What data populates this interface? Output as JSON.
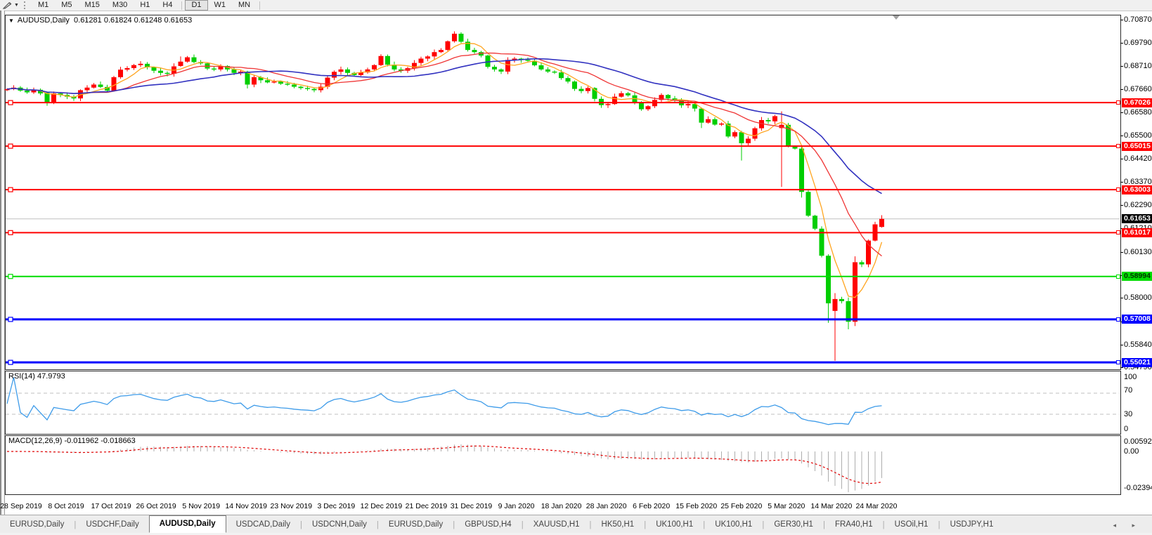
{
  "toolbar": {
    "timeframes": [
      "M1",
      "M5",
      "M15",
      "M30",
      "H1",
      "H4",
      "D1",
      "W1",
      "MN"
    ],
    "active_timeframe": "D1"
  },
  "chart_header": {
    "symbol": "AUDUSD,Daily",
    "ohlc_line": "0.61281 0.61824 0.61248 0.61653"
  },
  "panels": {
    "rsi": {
      "label": "RSI(14) 47.9793",
      "axis_labels": [
        "100",
        "70",
        "30",
        "0"
      ]
    },
    "macd": {
      "label": "MACD(12,26,9) -0.011962 -0.018663",
      "axis_labels": [
        "0.005923",
        "0.00",
        "-0.023944"
      ]
    }
  },
  "price_axis": {
    "ticks": [
      "0.70870",
      "0.69790",
      "0.68710",
      "0.67660",
      "0.66580",
      "0.65500",
      "0.64420",
      "0.63370",
      "0.62290",
      "0.61210",
      "0.60130",
      "0.59050",
      "0.58000",
      "0.56920",
      "0.55840",
      "0.54790"
    ],
    "current_price_badge": {
      "text": "0.61653",
      "bg": "#000000",
      "fg": "#FFFFFF"
    }
  },
  "time_axis": {
    "dates": [
      "28 Sep 2019",
      "8 Oct 2019",
      "17 Oct 2019",
      "26 Oct 2019",
      "5 Nov 2019",
      "14 Nov 2019",
      "23 Nov 2019",
      "3 Dec 2019",
      "12 Dec 2019",
      "21 Dec 2019",
      "31 Dec 2019",
      "9 Jan 2020",
      "18 Jan 2020",
      "28 Jan 2020",
      "6 Feb 2020",
      "15 Feb 2020",
      "25 Feb 2020",
      "5 Mar 2020",
      "14 Mar 2020",
      "24 Mar 2020"
    ]
  },
  "tabs": {
    "items": [
      "EURUSD,Daily",
      "USDCHF,Daily",
      "AUDUSD,Daily",
      "USDCAD,Daily",
      "USDCNH,Daily",
      "EURUSD,Daily",
      "GBPUSD,H4",
      "XAUUSD,H1",
      "HK50,H1",
      "UK100,H1",
      "UK100,H1",
      "GER30,H1",
      "FRA40,H1",
      "USOil,H1",
      "USDJPY,H1"
    ],
    "active_index": 2,
    "scroll_arrows": "◂ ▸"
  },
  "colors": {
    "bull_candle": "#FF0000",
    "bear_candle": "#00CE00",
    "ma_fast": "#FFA520",
    "ma_mid": "#EF3434",
    "ma_slow": "#3232C0",
    "rsi_line": "#3D9BE9",
    "macd_hist": "#ADADAD",
    "macd_signal": "#E00000",
    "current_price_line": "#C0C0C0",
    "hline_red": "#FF0000",
    "hline_green": "#00DC00",
    "hline_blue": "#0000FF"
  },
  "chart_data": {
    "type": "candlestick",
    "symbol": "AUDUSD",
    "timeframe": "Daily",
    "title": "AUDUSD,Daily",
    "current_ohlc": {
      "open": 0.61281,
      "high": 0.61824,
      "low": 0.61248,
      "close": 0.61653
    },
    "y_axis_range": [
      0.5479,
      0.7087
    ],
    "closes": [
      0.6765,
      0.6772,
      0.6758,
      0.675,
      0.6762,
      0.6745,
      0.6705,
      0.6745,
      0.6738,
      0.673,
      0.6722,
      0.676,
      0.6772,
      0.6786,
      0.6775,
      0.6758,
      0.682,
      0.6855,
      0.6862,
      0.6876,
      0.6882,
      0.6866,
      0.685,
      0.684,
      0.6836,
      0.687,
      0.6892,
      0.6912,
      0.689,
      0.6884,
      0.686,
      0.6856,
      0.6872,
      0.6856,
      0.684,
      0.6846,
      0.6786,
      0.682,
      0.6806,
      0.6796,
      0.68,
      0.679,
      0.6786,
      0.6776,
      0.677,
      0.6766,
      0.676,
      0.6776,
      0.6818,
      0.6845,
      0.6856,
      0.684,
      0.683,
      0.6842,
      0.6856,
      0.6876,
      0.6918,
      0.6878,
      0.6856,
      0.685,
      0.6862,
      0.6886,
      0.6906,
      0.6916,
      0.6936,
      0.6946,
      0.6986,
      0.7021,
      0.6984,
      0.6946,
      0.6936,
      0.692,
      0.6868,
      0.6856,
      0.6846,
      0.69,
      0.6906,
      0.69,
      0.6896,
      0.6875,
      0.6856,
      0.6846,
      0.6842,
      0.6816,
      0.68,
      0.6766,
      0.6756,
      0.677,
      0.672,
      0.6691,
      0.6696,
      0.673,
      0.6746,
      0.6736,
      0.67,
      0.6672,
      0.6686,
      0.6715,
      0.6738,
      0.6722,
      0.6716,
      0.669,
      0.6696,
      0.6675,
      0.661,
      0.6626,
      0.6601,
      0.6606,
      0.6546,
      0.6566,
      0.6515,
      0.6536,
      0.6584,
      0.6622,
      0.6616,
      0.664,
      0.66,
      0.65,
      0.649,
      0.629,
      0.618,
      0.612,
      0.5995,
      0.5775,
      0.5795,
      0.5785,
      0.569,
      0.5965,
      0.5955,
      0.6065,
      0.614,
      0.61653
    ],
    "ohlc_overrides": {
      "6": [
        0.6748,
        0.6754,
        0.6688,
        0.6705
      ],
      "16": [
        0.6758,
        0.6826,
        0.6754,
        0.682
      ],
      "26": [
        0.6872,
        0.6916,
        0.6868,
        0.6892
      ],
      "36": [
        0.6846,
        0.685,
        0.6768,
        0.6786
      ],
      "56": [
        0.6876,
        0.6926,
        0.6872,
        0.6918
      ],
      "67": [
        0.6986,
        0.7032,
        0.698,
        0.7021
      ],
      "72": [
        0.692,
        0.6924,
        0.686,
        0.6868
      ],
      "104": [
        0.6675,
        0.668,
        0.6585,
        0.661
      ],
      "110": [
        0.6566,
        0.6572,
        0.6435,
        0.6515
      ],
      "116": [
        0.6585,
        0.6662,
        0.6313,
        0.66
      ],
      "119": [
        0.649,
        0.6502,
        0.6264,
        0.629
      ],
      "123": [
        0.5995,
        0.6002,
        0.5685,
        0.5775
      ],
      "124": [
        0.574,
        0.5822,
        0.551,
        0.5795
      ],
      "126": [
        0.5785,
        0.5802,
        0.5655,
        0.569
      ],
      "127": [
        0.569,
        0.5992,
        0.567,
        0.5965
      ],
      "131": [
        0.61281,
        0.61824,
        0.61248,
        0.61653
      ]
    },
    "horizontal_lines": [
      {
        "price": 0.67026,
        "label": "0.67026",
        "color": "red",
        "width": 2
      },
      {
        "price": 0.65015,
        "label": "0.65015",
        "color": "red",
        "width": 2
      },
      {
        "price": 0.63003,
        "label": "0.63003",
        "color": "red",
        "width": 2
      },
      {
        "price": 0.61017,
        "label": "0.61017",
        "color": "red",
        "width": 2
      },
      {
        "price": 0.58994,
        "label": "0.58994",
        "color": "green",
        "width": 2
      },
      {
        "price": 0.57008,
        "label": "0.57008",
        "color": "blue",
        "width": 3
      },
      {
        "price": 0.55021,
        "label": "0.55021",
        "color": "blue",
        "width": 3
      }
    ],
    "moving_averages": [
      {
        "period": 5,
        "style": "fast"
      },
      {
        "period": 13,
        "style": "mid"
      },
      {
        "period": 26,
        "style": "slow"
      }
    ],
    "rsi": {
      "period": 14,
      "last_value": 47.9793,
      "levels": [
        70,
        30
      ],
      "range": [
        0,
        100
      ]
    },
    "macd": {
      "fast": 12,
      "slow": 26,
      "signal": 9,
      "last_main": -0.011962,
      "last_signal": -0.018663,
      "axis_max": 0.005923,
      "axis_min": -0.023944
    }
  }
}
